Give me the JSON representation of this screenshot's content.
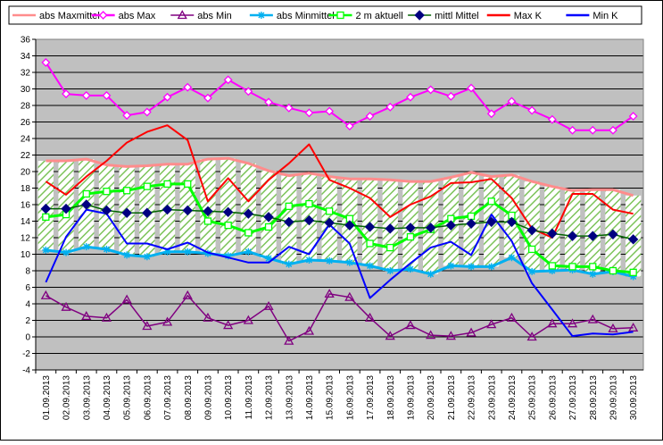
{
  "chart_data": {
    "type": "line",
    "x": [
      "01.09.2013",
      "02.09.2013",
      "03.09.2013",
      "04.09.2013",
      "05.09.2013",
      "06.09.2013",
      "07.09.2013",
      "08.09.2013",
      "09.09.2013",
      "10.09.2013",
      "11.09.2013",
      "12.09.2013",
      "13.09.2013",
      "14.09.2013",
      "15.09.2013",
      "16.09.2013",
      "17.09.2013",
      "18.09.2013",
      "19.09.2013",
      "20.09.2013",
      "21.09.2013",
      "22.09.2013",
      "23.09.2013",
      "24.09.2013",
      "25.09.2013",
      "26.09.2013",
      "27.09.2013",
      "28.09.2013",
      "29.09.2013",
      "30.09.2013"
    ],
    "ylim": [
      -4,
      36
    ],
    "yticks": [
      -4,
      -2,
      0,
      2,
      4,
      6,
      8,
      10,
      12,
      14,
      16,
      18,
      20,
      22,
      24,
      26,
      28,
      30,
      32,
      34,
      36
    ],
    "grid": true,
    "legend_position": "top",
    "series": [
      {
        "name": "abs Maxmittel",
        "color": "#ff8c8c",
        "marker": "dash",
        "values": [
          21.3,
          21.3,
          21.5,
          20.8,
          20.6,
          20.7,
          20.9,
          20.9,
          21.5,
          21.6,
          21.0,
          20.1,
          19.5,
          19.8,
          19.4,
          19.1,
          19.1,
          19.0,
          18.8,
          18.8,
          19.3,
          19.9,
          19.4,
          19.6,
          18.8,
          18.2,
          17.7,
          17.8,
          17.8,
          17.1
        ]
      },
      {
        "name": "abs Max",
        "color": "#ff00ff",
        "marker": "diamond-open",
        "values": [
          33.2,
          29.4,
          29.2,
          29.2,
          26.8,
          27.2,
          29.0,
          30.2,
          28.9,
          31.1,
          29.7,
          28.4,
          27.7,
          27.1,
          27.3,
          25.5,
          26.7,
          27.8,
          29.0,
          29.9,
          29.1,
          30.1,
          27.0,
          28.5,
          27.4,
          26.3,
          25.0,
          25.0,
          25.0,
          26.7
        ]
      },
      {
        "name": "abs Min",
        "color": "#800080",
        "marker": "triangle-open",
        "values": [
          5.0,
          3.6,
          2.5,
          2.3,
          4.5,
          1.3,
          1.8,
          5.0,
          2.3,
          1.4,
          2.0,
          3.7,
          -0.5,
          0.7,
          5.2,
          4.8,
          2.3,
          0.1,
          1.4,
          0.2,
          0.1,
          0.5,
          1.5,
          2.3,
          0.0,
          1.6,
          1.6,
          2.1,
          1.0,
          1.1
        ]
      },
      {
        "name": "abs Minmittel",
        "color": "#00b0f0",
        "marker": "star",
        "values": [
          10.5,
          10.2,
          10.9,
          10.6,
          9.9,
          9.7,
          10.3,
          10.3,
          10.1,
          9.8,
          10.3,
          9.5,
          8.8,
          9.3,
          9.2,
          9.0,
          8.6,
          8.0,
          8.2,
          7.6,
          8.6,
          8.5,
          8.5,
          9.6,
          7.9,
          8.0,
          8.1,
          7.6,
          7.9,
          7.3
        ]
      },
      {
        "name": "2 m aktuell",
        "color": "#00ff00",
        "marker": "square-open",
        "values": [
          14.5,
          14.8,
          17.3,
          17.6,
          17.7,
          18.2,
          18.5,
          18.5,
          14.0,
          13.5,
          12.6,
          13.3,
          15.8,
          16.1,
          15.2,
          14.3,
          11.3,
          10.8,
          12.1,
          13.0,
          14.3,
          14.6,
          16.4,
          14.7,
          10.6,
          8.6,
          8.5,
          8.5,
          8.0,
          7.8
        ]
      },
      {
        "name": "mittl Mittel",
        "color": "#006400",
        "marker": "diamond-filled",
        "marker_color": "#000080",
        "values": [
          15.5,
          15.5,
          16.0,
          15.3,
          15.0,
          15.0,
          15.4,
          15.3,
          15.2,
          15.1,
          14.9,
          14.5,
          13.9,
          14.1,
          13.8,
          13.5,
          13.3,
          13.1,
          13.2,
          13.2,
          13.5,
          13.7,
          13.9,
          13.9,
          12.9,
          12.5,
          12.2,
          12.2,
          12.4,
          11.8
        ]
      },
      {
        "name": "Max K",
        "color": "#ff0000",
        "marker": "none",
        "values": [
          18.8,
          17.2,
          19.4,
          21.3,
          23.5,
          24.8,
          25.6,
          23.8,
          16.4,
          19.2,
          16.4,
          19.0,
          21.0,
          23.3,
          19.0,
          18.0,
          16.8,
          14.5,
          16.0,
          17.0,
          18.6,
          18.7,
          19.1,
          16.8,
          13.1,
          12.0,
          17.3,
          17.3,
          15.4,
          14.9
        ]
      },
      {
        "name": "Min K",
        "color": "#0000ff",
        "marker": "none",
        "values": [
          6.6,
          12.1,
          15.4,
          14.9,
          11.3,
          11.3,
          10.6,
          11.4,
          10.2,
          9.6,
          9.0,
          9.0,
          10.9,
          10.0,
          13.6,
          11.3,
          4.7,
          6.9,
          8.9,
          10.8,
          11.5,
          9.9,
          14.8,
          11.6,
          6.5,
          3.3,
          0.1,
          0.4,
          0.3,
          0.6
        ]
      }
    ]
  }
}
